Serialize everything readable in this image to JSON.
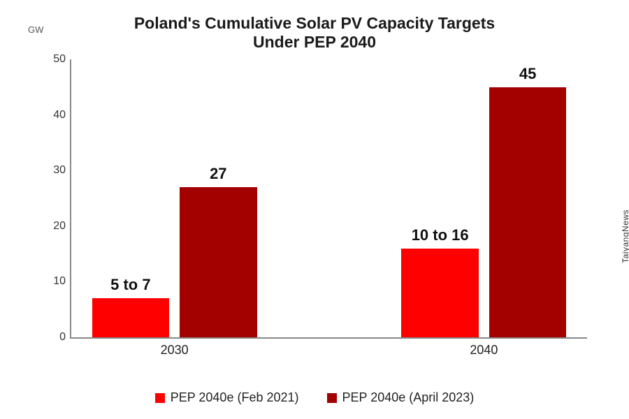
{
  "chart": {
    "type": "bar",
    "title_line1": "Poland's Cumulative Solar PV Capacity Targets",
    "title_line2": "Under PEP 2040",
    "title_fontsize": 23,
    "title_color": "#1a1a1a",
    "yaxis_label": "GW",
    "yaxis_label_fontsize": 13,
    "ylim": [
      0,
      50
    ],
    "ytick_step": 10,
    "yticks": [
      0,
      10,
      20,
      30,
      40,
      50
    ],
    "axis_color": "#888888",
    "background_color": "#ffffff",
    "grid": false,
    "categories": [
      "2030",
      "2040"
    ],
    "series": [
      {
        "name": "PEP 2040e (Feb 2021)",
        "color": "#ff0000"
      },
      {
        "name": "PEP 2040e (April 2023)",
        "color": "#a30000"
      }
    ],
    "bars": [
      {
        "category": 0,
        "series": 0,
        "value": 7,
        "label": "5 to 7"
      },
      {
        "category": 0,
        "series": 1,
        "value": 27,
        "label": "27"
      },
      {
        "category": 1,
        "series": 0,
        "value": 16,
        "label": "10 to 16"
      },
      {
        "category": 1,
        "series": 1,
        "value": 45,
        "label": "45"
      }
    ],
    "bar_label_fontsize": 22,
    "xtick_fontsize": 18,
    "ytick_fontsize": 16,
    "legend_fontsize": 18,
    "bar_group_gap_pct": 28,
    "bar_width_pct": 15,
    "bar_gap_pct": 2,
    "source": "TaiyangNews"
  }
}
